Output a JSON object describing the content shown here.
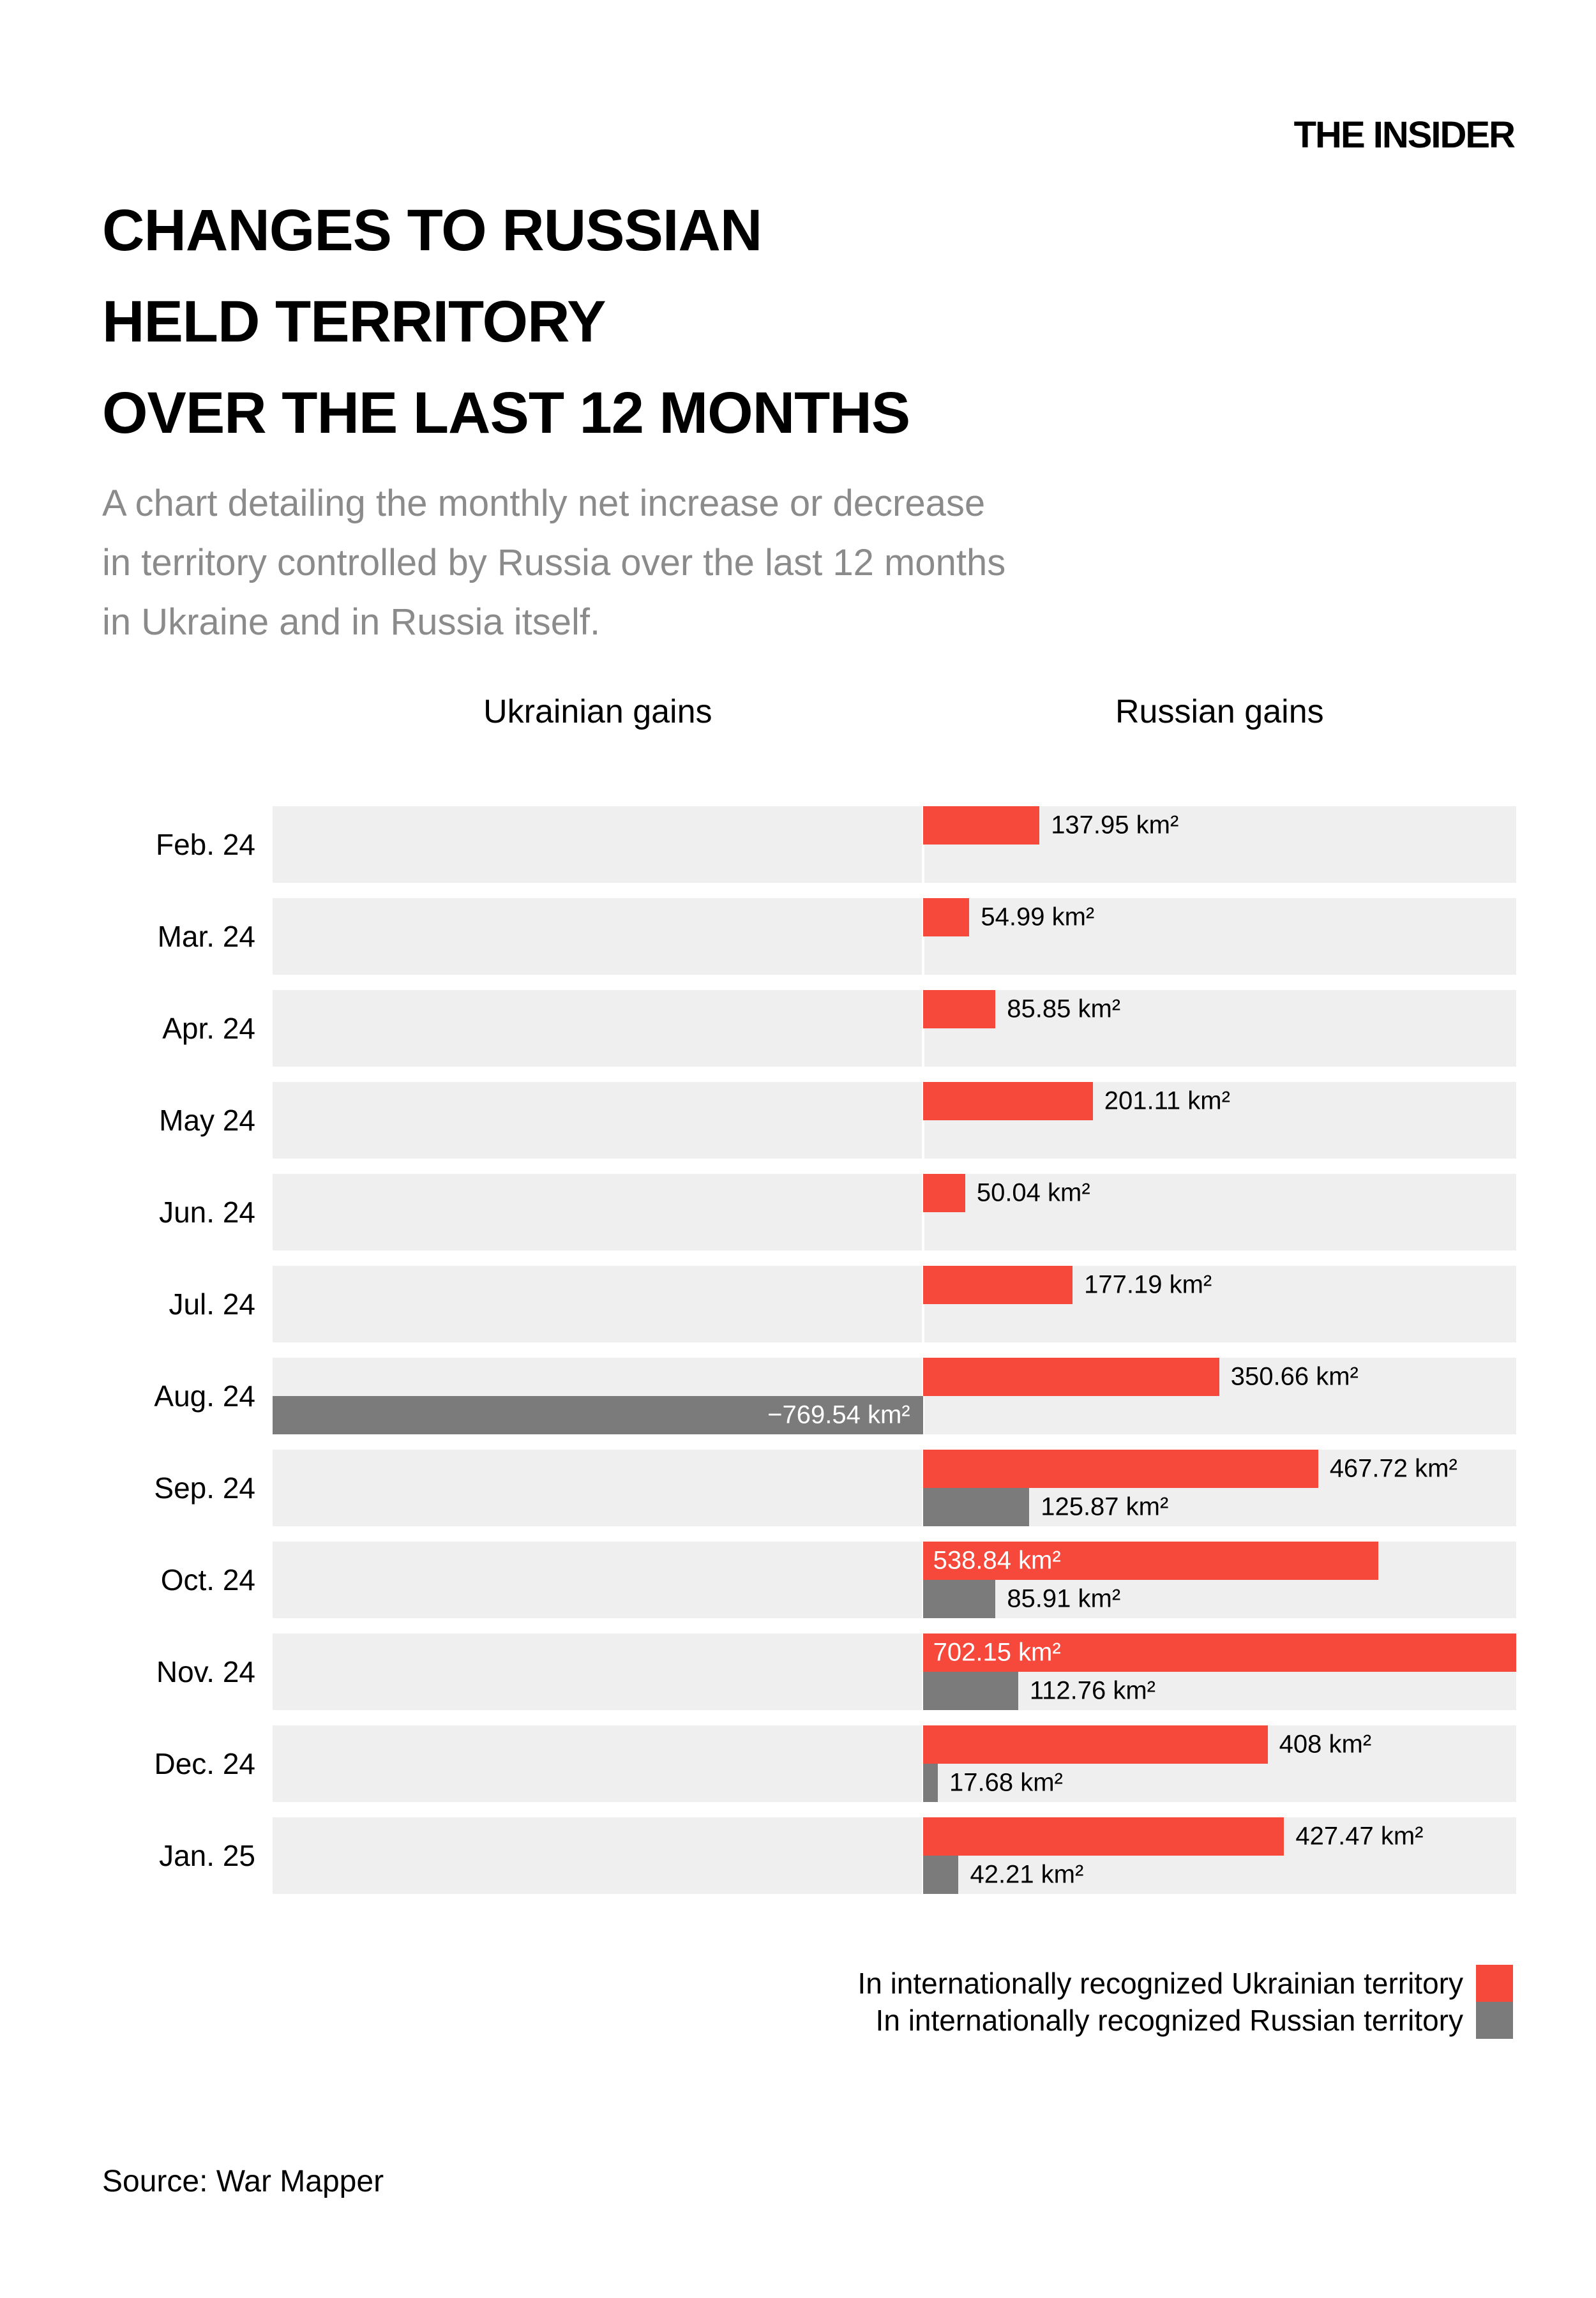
{
  "header": {
    "logo": "THE INSIDER"
  },
  "title": "CHANGES TO RUSSIAN\nHELD TERRITORY\nOVER THE LAST 12 MONTHS",
  "subtitle": "A chart detailing the monthly net increase or decrease\nin territory controlled by Russia over the last 12 months\nin Ukraine and in Russia itself.",
  "colors": {
    "ukrainian_territory_bar": "#F7493B",
    "russian_territory_bar": "#7B7B7B",
    "band_background": "#EFEFEF",
    "subtitle_text": "#8B8B8B"
  },
  "chart": {
    "column_headers": {
      "left": "Ukrainian gains",
      "right": "Russian gains"
    },
    "rows": [
      {
        "month": "Feb. 24",
        "ua": {
          "value": 137.95,
          "label": "137.95 km²",
          "placement": "outside"
        },
        "ru": null
      },
      {
        "month": "Mar. 24",
        "ua": {
          "value": 54.99,
          "label": "54.99 km²",
          "placement": "outside"
        },
        "ru": null
      },
      {
        "month": "Apr. 24",
        "ua": {
          "value": 85.85,
          "label": "85.85 km²",
          "placement": "outside"
        },
        "ru": null
      },
      {
        "month": "May 24",
        "ua": {
          "value": 201.11,
          "label": "201.11 km²",
          "placement": "outside"
        },
        "ru": null
      },
      {
        "month": "Jun. 24",
        "ua": {
          "value": 50.04,
          "label": "50.04 km²",
          "placement": "outside"
        },
        "ru": null
      },
      {
        "month": "Jul. 24",
        "ua": {
          "value": 177.19,
          "label": "177.19 km²",
          "placement": "outside"
        },
        "ru": null
      },
      {
        "month": "Aug. 24",
        "ua": {
          "value": 350.66,
          "label": "350.66 km²",
          "placement": "outside"
        },
        "ru": {
          "value": -769.54,
          "label": "−769.54 km²",
          "placement": "inside"
        }
      },
      {
        "month": "Sep. 24",
        "ua": {
          "value": 467.72,
          "label": "467.72 km²",
          "placement": "outside"
        },
        "ru": {
          "value": 125.87,
          "label": "125.87 km²",
          "placement": "outside"
        }
      },
      {
        "month": "Oct. 24",
        "ua": {
          "value": 538.84,
          "label": "538.84 km²",
          "placement": "inside"
        },
        "ru": {
          "value": 85.91,
          "label": "85.91 km²",
          "placement": "outside"
        }
      },
      {
        "month": "Nov. 24",
        "ua": {
          "value": 702.15,
          "label": "702.15 km²",
          "placement": "inside"
        },
        "ru": {
          "value": 112.76,
          "label": "112.76 km²",
          "placement": "outside"
        }
      },
      {
        "month": "Dec. 24",
        "ua": {
          "value": 408,
          "label": "408 km²",
          "placement": "outside"
        },
        "ru": {
          "value": 17.68,
          "label": "17.68 km²",
          "placement": "outside"
        }
      },
      {
        "month": "Jan. 25",
        "ua": {
          "value": 427.47,
          "label": "427.47 km²",
          "placement": "outside"
        },
        "ru": {
          "value": 42.21,
          "label": "42.21 km²",
          "placement": "outside"
        }
      }
    ]
  },
  "chart_data": {
    "type": "bar",
    "orientation": "horizontal-diverging",
    "title": "CHANGES TO RUSSIAN HELD TERRITORY OVER THE LAST 12 MONTHS",
    "subtitle": "A chart detailing the monthly net increase or decrease in territory controlled by Russia over the last 12 months in Ukraine and in Russia itself.",
    "categories": [
      "Feb. 24",
      "Mar. 24",
      "Apr. 24",
      "May 24",
      "Jun. 24",
      "Jul. 24",
      "Aug. 24",
      "Sep. 24",
      "Oct. 24",
      "Nov. 24",
      "Dec. 24",
      "Jan. 25"
    ],
    "series": [
      {
        "name": "In internationally recognized Ukrainian territory",
        "color": "#F7493B",
        "values": [
          137.95,
          54.99,
          85.85,
          201.11,
          50.04,
          177.19,
          350.66,
          467.72,
          538.84,
          702.15,
          408,
          427.47
        ]
      },
      {
        "name": "In internationally recognized Russian territory",
        "color": "#7B7B7B",
        "values": [
          null,
          null,
          null,
          null,
          null,
          null,
          -769.54,
          125.87,
          85.91,
          112.76,
          17.68,
          42.21
        ]
      }
    ],
    "unit": "km²",
    "xlim": [
      -769.54,
      702.15
    ],
    "column_headers": [
      "Ukrainian gains",
      "Russian gains"
    ],
    "grid": false,
    "legend_position": "bottom-right"
  },
  "legend": [
    {
      "label": "In internationally recognized Ukrainian territory",
      "color": "#F7493B"
    },
    {
      "label": "In internationally recognized Russian territory",
      "color": "#7B7B7B"
    }
  ],
  "source": "Source: War Mapper"
}
